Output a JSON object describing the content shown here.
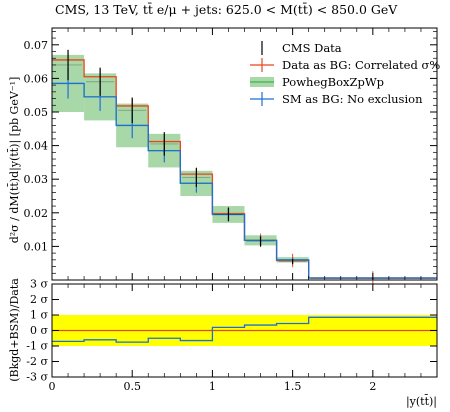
{
  "title": "CMS, 13 TeV, tt̄ e/μ + jets: 625.0 < M(tt̄) < 850.0 GeV",
  "chart_data": [
    {
      "type": "line",
      "ylabel": "d²σ / dM(tt̄)d|y(tt̄)| [pb GeV⁻¹]",
      "xlim": [
        0,
        2.4
      ],
      "ylim": [
        0,
        0.075
      ],
      "x_ticks": [
        "0",
        "0.5",
        "1",
        "1.5",
        "2"
      ],
      "y_ticks": [
        "0.01",
        "0.02",
        "0.03",
        "0.04",
        "0.05",
        "0.06",
        "0.07"
      ],
      "bin_edges": [
        0,
        0.2,
        0.4,
        0.6,
        0.8,
        1.0,
        1.2,
        1.4,
        1.6,
        2.4
      ],
      "legend_position": "top-right",
      "series": [
        {
          "name": "CMS Data",
          "color": "#000000",
          "style": "points",
          "values": [
            0.064,
            0.059,
            0.0505,
            0.0405,
            0.0305,
            0.0195,
            0.0115,
            0.0055,
            0.0005
          ],
          "errors": [
            0.0045,
            0.0042,
            0.0038,
            0.0035,
            0.0028,
            0.002,
            0.0015,
            0.0008,
            0.0002
          ]
        },
        {
          "name": "Data as BG: Correlated σ%",
          "color": "#e8461c",
          "style": "step",
          "values": [
            0.0655,
            0.0605,
            0.0518,
            0.0412,
            0.0315,
            0.0198,
            0.0118,
            0.0058,
            0.0006
          ]
        },
        {
          "name": "PowhegBoxZpWp",
          "color": "#3cb34a",
          "fill": "#a8d8a8",
          "style": "band",
          "values": [
            0.0585,
            0.0545,
            0.046,
            0.0385,
            0.0288,
            0.0195,
            0.0118,
            0.006,
            0.0006
          ],
          "band_low": [
            0.05,
            0.0475,
            0.0395,
            0.0335,
            0.025,
            0.017,
            0.0103,
            0.0052,
            0.0005
          ],
          "band_high": [
            0.067,
            0.0615,
            0.0525,
            0.0435,
            0.0325,
            0.022,
            0.0133,
            0.0068,
            0.0007
          ]
        },
        {
          "name": "SM as BG: No exclusion",
          "color": "#1f6fd6",
          "style": "step",
          "values": [
            0.0585,
            0.0545,
            0.046,
            0.0385,
            0.0288,
            0.0195,
            0.0118,
            0.006,
            0.0006
          ],
          "errors": [
            0.0045,
            0.0042,
            0.0038,
            0.0035,
            0.0028,
            0.002,
            0.0015,
            0.0008,
            0.0002
          ]
        }
      ]
    },
    {
      "type": "line",
      "ylabel": "(Bkgd+BSM)/Data",
      "xlabel": "|y(tt̄)|",
      "xlim": [
        0,
        2.4
      ],
      "ylim": [
        -3,
        3
      ],
      "x_ticks": [
        "0",
        "0.5",
        "1",
        "1.5",
        "2"
      ],
      "y_ticks": [
        "-3 σ",
        "-2 σ",
        "-1 σ",
        "0 σ",
        "1 σ",
        "2 σ",
        "3 σ"
      ],
      "band": {
        "low": -1,
        "high": 1,
        "color": "#ffff00"
      },
      "series": [
        {
          "name": "Data as BG: Correlated σ%",
          "color": "#e8461c",
          "style": "step",
          "values": [
            0,
            0,
            0,
            0,
            0,
            0,
            0,
            0,
            0
          ]
        },
        {
          "name": "SM as BG: No exclusion",
          "color": "#1f6fd6",
          "style": "step",
          "values": [
            -0.7,
            -0.6,
            -0.75,
            -0.5,
            -0.65,
            0.2,
            0.35,
            0.45,
            0.85
          ]
        }
      ]
    }
  ]
}
